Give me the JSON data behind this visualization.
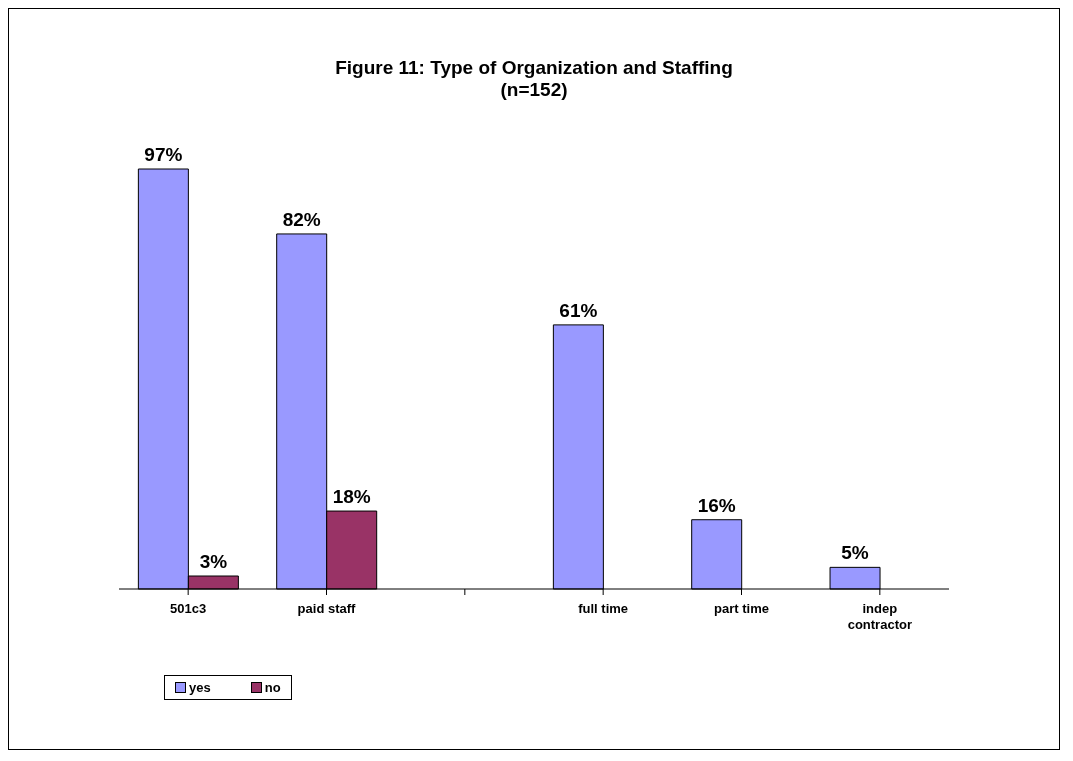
{
  "chart_data": {
    "type": "bar",
    "title": "Figure 11: Type of Organization and Staffing",
    "subtitle": "(n=152)",
    "categories": [
      "501c3",
      "paid staff",
      null,
      "full time",
      "part time",
      "indep contractor"
    ],
    "series": [
      {
        "name": "yes",
        "color": "#9999ff",
        "values": [
          97,
          82,
          null,
          61,
          16,
          5
        ],
        "value_labels": [
          "97%",
          "82%",
          null,
          "61%",
          "16%",
          "5%"
        ]
      },
      {
        "name": "no",
        "color": "#993366",
        "values": [
          3,
          18,
          null,
          null,
          null,
          null
        ],
        "value_labels": [
          "3%",
          "18%",
          null,
          null,
          null,
          null
        ]
      }
    ],
    "legend": "bottom left",
    "grid": false
  }
}
